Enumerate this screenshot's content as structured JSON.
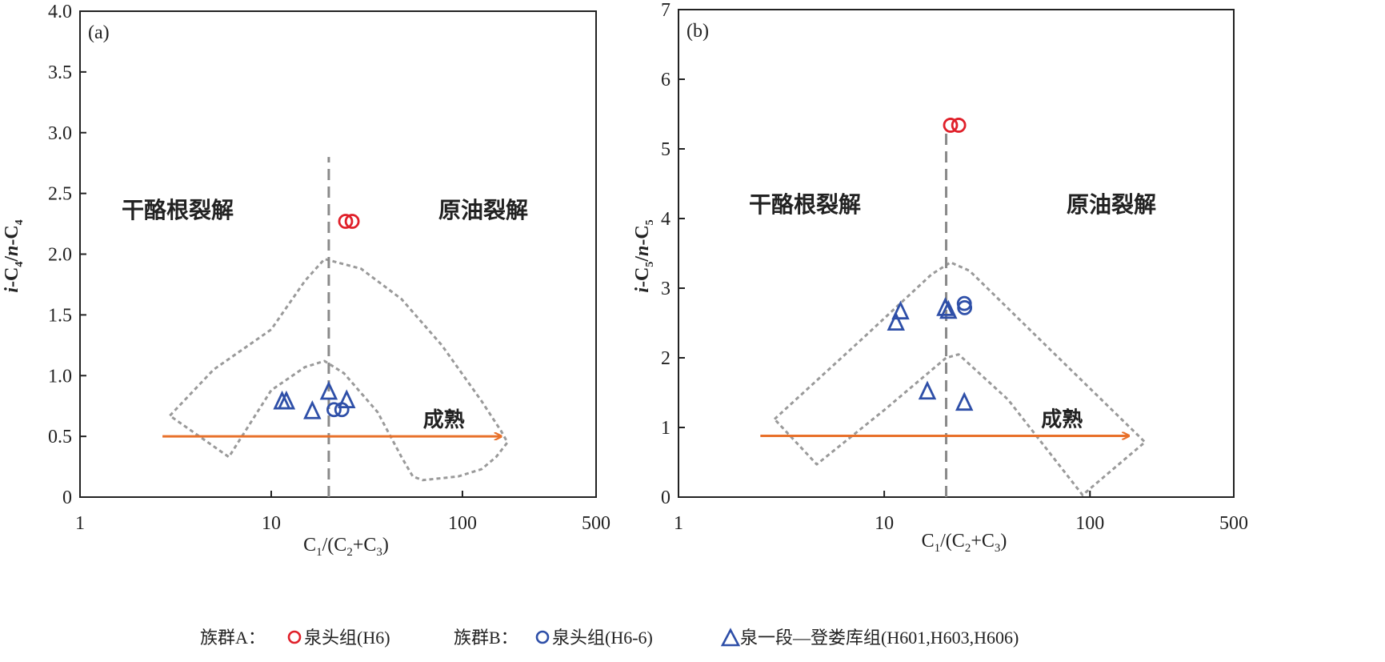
{
  "colors": {
    "groupA": "#e0202a",
    "groupB": "#2e4fa8",
    "arrow": "#e8702a",
    "envelope": "#9a9a9a",
    "divider": "#8a8a8a"
  },
  "legend": {
    "groupA_label": "族群A：",
    "groupA_series": "泉头组(H6)",
    "groupB_label": "族群B：",
    "groupB_circle_series": "泉头组(H6-6)",
    "groupB_triangle_series": "泉一段—登娄库组(H601,H603,H606)"
  },
  "chart_data": [
    {
      "type": "scatter",
      "panel_label": "(a)",
      "xlabel": {
        "main": "C",
        "s1": "1",
        "mid": "/(C",
        "s2": "2",
        "plus": "+C",
        "s3": "3",
        "end": ")"
      },
      "ylabel": {
        "i": "i",
        "c": "-C",
        "s": "4",
        "sep": "/",
        "n": "n",
        "c2": "-C",
        "s2": "4"
      },
      "x_scale": "log",
      "xlim": [
        1,
        500
      ],
      "ylim": [
        0,
        4.0
      ],
      "x_ticks": [
        1,
        10,
        100,
        500
      ],
      "x_tick_labels": [
        "1",
        "10",
        "100",
        "500"
      ],
      "y_ticks": [
        0,
        0.5,
        1.0,
        1.5,
        2.0,
        2.5,
        3.0,
        3.5,
        4.0
      ],
      "y_tick_labels": [
        "0",
        "0.5",
        "1.0",
        "1.5",
        "2.0",
        "2.5",
        "3.0",
        "3.5",
        "4.0"
      ],
      "grid": false,
      "region_labels": {
        "left": "干酪根裂解",
        "right": "原油裂解",
        "arrow": "成熟"
      },
      "divider_x": 20,
      "divider_ylim": [
        0,
        2.8
      ],
      "arrow": {
        "from": [
          2.7,
          0.5
        ],
        "to": [
          160,
          0.5
        ]
      },
      "envelope": [
        [
          2.95,
          0.67
        ],
        [
          5,
          1.05
        ],
        [
          10,
          1.38
        ],
        [
          15,
          1.78
        ],
        [
          19,
          1.96
        ],
        [
          29.5,
          1.88
        ],
        [
          48,
          1.63
        ],
        [
          78,
          1.25
        ],
        [
          126,
          0.79
        ],
        [
          160,
          0.54
        ],
        [
          172,
          0.45
        ],
        [
          150,
          0.33
        ],
        [
          126,
          0.23
        ],
        [
          95,
          0.17
        ],
        [
          62,
          0.14
        ],
        [
          55,
          0.17
        ],
        [
          48,
          0.33
        ],
        [
          36,
          0.7
        ],
        [
          24,
          1.02
        ],
        [
          19,
          1.12
        ],
        [
          15,
          1.07
        ],
        [
          10,
          0.88
        ],
        [
          6,
          0.33
        ],
        [
          2.95,
          0.67
        ]
      ],
      "series": [
        {
          "name": "泉头组(H6)",
          "group": "A",
          "marker": "circle",
          "points": [
            [
              24.5,
              2.27
            ],
            [
              26.5,
              2.27
            ]
          ]
        },
        {
          "name": "泉头组(H6-6)",
          "group": "B",
          "marker": "circle",
          "points": [
            [
              21.3,
              0.72
            ],
            [
              23.4,
              0.72
            ]
          ]
        },
        {
          "name": "泉一段—登娄库组(H601,H603,H606)",
          "group": "B",
          "marker": "triangle",
          "points": [
            [
              11.4,
              0.79
            ],
            [
              12.0,
              0.79
            ],
            [
              16.4,
              0.71
            ],
            [
              20,
              0.87
            ],
            [
              24.8,
              0.8
            ]
          ]
        }
      ]
    },
    {
      "type": "scatter",
      "panel_label": "(b)",
      "xlabel": {
        "main": "C",
        "s1": "1",
        "mid": "/(C",
        "s2": "2",
        "plus": "+C",
        "s3": "3",
        "end": ")"
      },
      "ylabel": {
        "i": "i",
        "c": "-C",
        "s": "5",
        "sep": "/",
        "n": "n",
        "c2": "-C",
        "s2": "5"
      },
      "x_scale": "log",
      "xlim": [
        1,
        500
      ],
      "ylim": [
        0,
        7
      ],
      "x_ticks": [
        1,
        10,
        100,
        500
      ],
      "x_tick_labels": [
        "1",
        "10",
        "100",
        "500"
      ],
      "y_ticks": [
        0,
        1,
        2,
        3,
        4,
        5,
        6,
        7
      ],
      "y_tick_labels": [
        "0",
        "1",
        "2",
        "3",
        "4",
        "5",
        "6",
        "7"
      ],
      "grid": false,
      "region_labels": {
        "left": "干酪根裂解",
        "right": "原油裂解",
        "arrow": "成熟"
      },
      "divider_x": 20,
      "divider_ylim": [
        0,
        5.3
      ],
      "arrow": {
        "from": [
          2.5,
          0.88
        ],
        "to": [
          155,
          0.88
        ]
      },
      "envelope": [
        [
          2.93,
          1.12
        ],
        [
          8,
          2.3
        ],
        [
          17,
          3.2
        ],
        [
          21,
          3.37
        ],
        [
          26,
          3.25
        ],
        [
          60,
          2.2
        ],
        [
          185,
          0.79
        ],
        [
          92,
          0.03
        ],
        [
          40,
          1.4
        ],
        [
          23,
          2.05
        ],
        [
          20,
          2.0
        ],
        [
          10,
          1.25
        ],
        [
          4.7,
          0.47
        ],
        [
          2.93,
          1.12
        ]
      ],
      "series": [
        {
          "name": "泉头组(H6)",
          "group": "A",
          "marker": "circle",
          "points": [
            [
              21,
              5.34
            ],
            [
              23,
              5.34
            ]
          ]
        },
        {
          "name": "泉头组(H6-6)",
          "group": "B",
          "marker": "circle",
          "points": [
            [
              24.5,
              2.78
            ],
            [
              24.6,
              2.72
            ]
          ]
        },
        {
          "name": "泉一段—登娄库组(H601,H603,H606)",
          "group": "B",
          "marker": "triangle",
          "points": [
            [
              12,
              2.67
            ],
            [
              11.4,
              2.51
            ],
            [
              19.8,
              2.72
            ],
            [
              20.5,
              2.68
            ],
            [
              16.2,
              1.52
            ],
            [
              24.5,
              1.36
            ]
          ]
        }
      ]
    }
  ]
}
